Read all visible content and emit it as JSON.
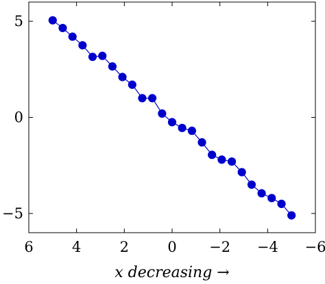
{
  "chart_data": {
    "type": "line",
    "title": "",
    "xlabel": "x decreasing →",
    "ylabel": "",
    "x_reversed": true,
    "xlim": [
      -6,
      6
    ],
    "ylim": [
      -6,
      6
    ],
    "x_ticks": [
      6,
      4,
      2,
      0,
      -2,
      -4,
      -6
    ],
    "x_tick_labels": [
      "6",
      "4",
      "2",
      "0",
      "−2",
      "−4",
      "−6"
    ],
    "y_ticks": [
      5,
      0,
      -5
    ],
    "y_tick_labels": [
      "5",
      "0",
      "−5"
    ],
    "grid": false,
    "color": "#0000cc",
    "series": [
      {
        "marker": "circle",
        "x": [
          5.0,
          4.58,
          4.17,
          3.75,
          3.33,
          2.92,
          2.5,
          2.08,
          1.67,
          1.25,
          0.83,
          0.42,
          0.0,
          -0.42,
          -0.83,
          -1.25,
          -1.67,
          -2.08,
          -2.5,
          -2.92,
          -3.33,
          -3.75,
          -4.17,
          -4.58,
          -5.0
        ],
        "y": [
          5.05,
          4.65,
          4.2,
          3.75,
          3.15,
          3.2,
          2.65,
          2.1,
          1.7,
          1.0,
          1.0,
          0.2,
          -0.25,
          -0.55,
          -0.7,
          -1.3,
          -1.95,
          -2.2,
          -2.3,
          -2.85,
          -3.5,
          -3.95,
          -4.2,
          -4.5,
          -5.1
        ]
      }
    ]
  }
}
